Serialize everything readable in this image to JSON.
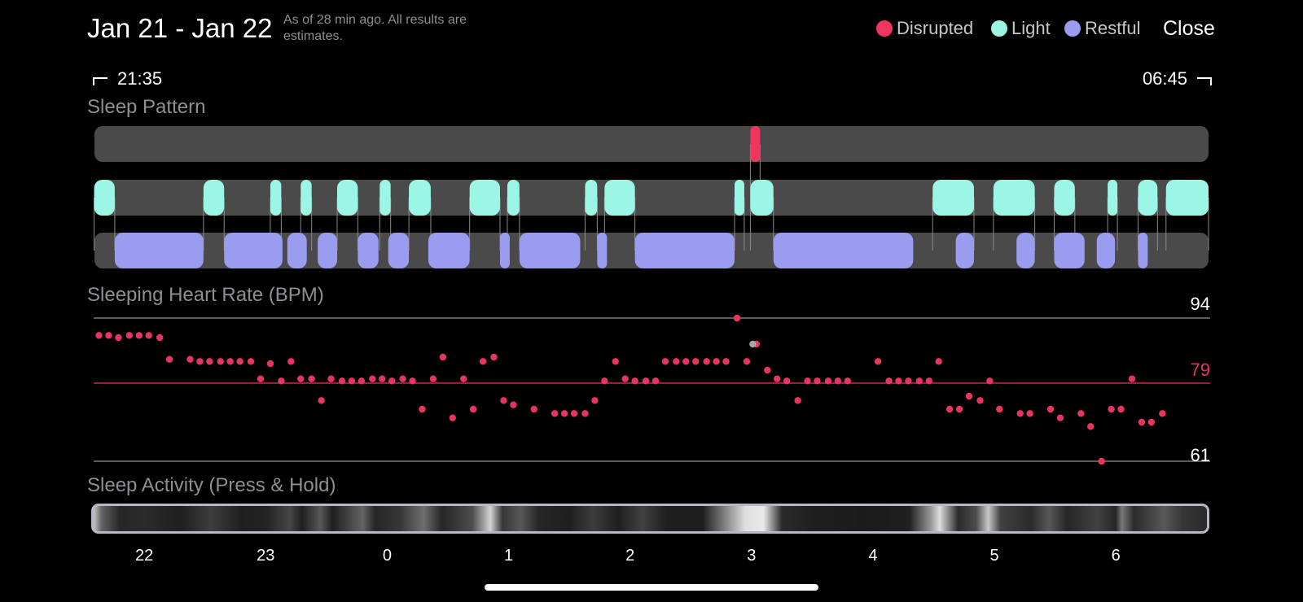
{
  "header": {
    "date_range": "Jan 21 - Jan 22",
    "estimate_note": "As of 28 min ago. All results are estimates.",
    "close_label": "Close"
  },
  "legend": [
    {
      "label": "Disrupted",
      "color": "#f0365e"
    },
    {
      "label": "Light",
      "color": "#9bf6e6"
    },
    {
      "label": "Restful",
      "color": "#9a9cf0"
    }
  ],
  "time_range": {
    "start": "21:35",
    "end": "06:45"
  },
  "sections": {
    "sleep_pattern": "Sleep Pattern",
    "heart_rate": "Sleeping Heart Rate (BPM)",
    "activity": "Sleep Activity (Press & Hold)"
  },
  "colors": {
    "disrupted": "#f0365e",
    "light": "#9bf6e6",
    "restful": "#9a9cf0",
    "lane": "#4a4a4a",
    "hr_dot": "#e8355f",
    "hr_dot_alt": "#a8a8a8"
  },
  "chart_data": [
    {
      "type": "timeline",
      "x_unit": "hours since midnight Jan 21",
      "xlim": [
        21.583,
        30.75
      ],
      "lanes": [
        "Disrupted",
        "Light",
        "Restful"
      ],
      "segments": {
        "Disrupted": [
          [
            26.98,
            27.06
          ]
        ],
        "Light": [
          [
            21.58,
            21.75
          ],
          [
            22.48,
            22.65
          ],
          [
            23.03,
            23.12
          ],
          [
            23.28,
            23.37
          ],
          [
            23.58,
            23.75
          ],
          [
            23.93,
            24.02
          ],
          [
            24.17,
            24.35
          ],
          [
            24.67,
            24.92
          ],
          [
            24.98,
            25.08
          ],
          [
            25.62,
            25.72
          ],
          [
            25.78,
            26.03
          ],
          [
            26.85,
            26.93
          ],
          [
            26.98,
            27.17
          ],
          [
            28.48,
            28.82
          ],
          [
            28.98,
            29.32
          ],
          [
            29.48,
            29.65
          ],
          [
            29.92,
            30.0
          ],
          [
            30.17,
            30.33
          ],
          [
            30.4,
            30.75
          ]
        ],
        "Restful": [
          [
            21.75,
            22.48
          ],
          [
            22.65,
            23.13
          ],
          [
            23.17,
            23.33
          ],
          [
            23.42,
            23.58
          ],
          [
            23.75,
            23.92
          ],
          [
            24.0,
            24.17
          ],
          [
            24.33,
            24.67
          ],
          [
            24.92,
            25.0
          ],
          [
            25.08,
            25.58
          ],
          [
            25.72,
            25.8
          ],
          [
            26.03,
            26.85
          ],
          [
            27.17,
            28.32
          ],
          [
            28.67,
            28.82
          ],
          [
            29.17,
            29.32
          ],
          [
            29.48,
            29.73
          ],
          [
            29.83,
            29.98
          ],
          [
            30.17,
            30.25
          ]
        ]
      }
    },
    {
      "type": "scatter",
      "title": "Sleeping Heart Rate (BPM)",
      "x_unit": "hours since midnight Jan 21",
      "xlim": [
        21.583,
        30.75
      ],
      "ylim": [
        61,
        94
      ],
      "reference_lines": [
        {
          "value": 94,
          "label": "94"
        },
        {
          "value": 79,
          "label": "79"
        },
        {
          "value": 61,
          "label": "61"
        }
      ],
      "points": [
        [
          21.62,
          90
        ],
        [
          21.7,
          90
        ],
        [
          21.78,
          89.5
        ],
        [
          21.87,
          90
        ],
        [
          21.95,
          90
        ],
        [
          22.03,
          90
        ],
        [
          22.12,
          89.5
        ],
        [
          22.2,
          84.5
        ],
        [
          22.37,
          84.5
        ],
        [
          22.45,
          84
        ],
        [
          22.53,
          84
        ],
        [
          22.62,
          84
        ],
        [
          22.7,
          84
        ],
        [
          22.78,
          84
        ],
        [
          22.87,
          84
        ],
        [
          22.95,
          80
        ],
        [
          23.03,
          83.5
        ],
        [
          23.12,
          79.5
        ],
        [
          23.2,
          84
        ],
        [
          23.28,
          80
        ],
        [
          23.37,
          80
        ],
        [
          23.45,
          75
        ],
        [
          23.53,
          80
        ],
        [
          23.62,
          79.5
        ],
        [
          23.7,
          79.5
        ],
        [
          23.78,
          79.5
        ],
        [
          23.87,
          80
        ],
        [
          23.95,
          80
        ],
        [
          24.03,
          79.5
        ],
        [
          24.12,
          80
        ],
        [
          24.2,
          79.5
        ],
        [
          24.28,
          73
        ],
        [
          24.37,
          80
        ],
        [
          24.45,
          85
        ],
        [
          24.53,
          71
        ],
        [
          24.62,
          80
        ],
        [
          24.7,
          73
        ],
        [
          24.78,
          84
        ],
        [
          24.87,
          85
        ],
        [
          24.95,
          75
        ],
        [
          25.03,
          74
        ],
        [
          25.2,
          73
        ],
        [
          25.37,
          72
        ],
        [
          25.45,
          72
        ],
        [
          25.53,
          72
        ],
        [
          25.62,
          72
        ],
        [
          25.7,
          75
        ],
        [
          25.78,
          79.5
        ],
        [
          25.87,
          84
        ],
        [
          25.95,
          80
        ],
        [
          26.03,
          79.5
        ],
        [
          26.12,
          79.5
        ],
        [
          26.2,
          79.5
        ],
        [
          26.28,
          84
        ],
        [
          26.37,
          84
        ],
        [
          26.45,
          84
        ],
        [
          26.53,
          84
        ],
        [
          26.62,
          84
        ],
        [
          26.7,
          84
        ],
        [
          26.78,
          84
        ],
        [
          26.87,
          94
        ],
        [
          26.95,
          84
        ],
        [
          27.03,
          88
        ],
        [
          27.12,
          82
        ],
        [
          27.2,
          80
        ],
        [
          27.28,
          79.5
        ],
        [
          27.37,
          75
        ],
        [
          27.45,
          79.5
        ],
        [
          27.53,
          79.5
        ],
        [
          27.62,
          79.5
        ],
        [
          27.7,
          79.5
        ],
        [
          27.78,
          79.5
        ],
        [
          28.03,
          84
        ],
        [
          28.12,
          79.5
        ],
        [
          28.2,
          79.5
        ],
        [
          28.28,
          79.5
        ],
        [
          28.37,
          79.5
        ],
        [
          28.45,
          79.5
        ],
        [
          28.53,
          84
        ],
        [
          28.62,
          73
        ],
        [
          28.7,
          73
        ],
        [
          28.78,
          76
        ],
        [
          28.87,
          75
        ],
        [
          28.95,
          79.5
        ],
        [
          29.03,
          73
        ],
        [
          29.2,
          72
        ],
        [
          29.28,
          72
        ],
        [
          29.45,
          73
        ],
        [
          29.53,
          71
        ],
        [
          29.7,
          72
        ],
        [
          29.78,
          69
        ],
        [
          29.87,
          61
        ],
        [
          29.95,
          73
        ],
        [
          30.03,
          73
        ],
        [
          30.12,
          80
        ],
        [
          30.2,
          70
        ],
        [
          30.28,
          70
        ],
        [
          30.37,
          72
        ]
      ],
      "highlight_point": [
        27.0,
        88
      ]
    },
    {
      "type": "heatmap",
      "title": "Sleep Activity (Press & Hold)",
      "x_unit": "hours since midnight Jan 21",
      "xlim": [
        21.583,
        30.75
      ],
      "x_ticks": [
        {
          "value": 22,
          "label": "22"
        },
        {
          "value": 23,
          "label": "23"
        },
        {
          "value": 24,
          "label": "0"
        },
        {
          "value": 25,
          "label": "1"
        },
        {
          "value": 26,
          "label": "2"
        },
        {
          "value": 27,
          "label": "3"
        },
        {
          "value": 28,
          "label": "4"
        },
        {
          "value": 29,
          "label": "5"
        },
        {
          "value": 30,
          "label": "6"
        }
      ],
      "intensity": [
        [
          21.58,
          0.8
        ],
        [
          21.65,
          0.35
        ],
        [
          21.8,
          0.08
        ],
        [
          22.0,
          0.1
        ],
        [
          22.3,
          0.05
        ],
        [
          22.55,
          0.18
        ],
        [
          22.8,
          0.05
        ],
        [
          23.0,
          0.06
        ],
        [
          23.2,
          0.22
        ],
        [
          23.3,
          0.05
        ],
        [
          23.45,
          0.3
        ],
        [
          23.55,
          0.05
        ],
        [
          23.8,
          0.35
        ],
        [
          23.9,
          0.08
        ],
        [
          24.1,
          0.15
        ],
        [
          24.3,
          0.4
        ],
        [
          24.45,
          0.08
        ],
        [
          24.7,
          0.25
        ],
        [
          24.85,
          0.85
        ],
        [
          24.95,
          0.15
        ],
        [
          25.1,
          0.3
        ],
        [
          25.25,
          0.08
        ],
        [
          25.5,
          0.05
        ],
        [
          25.7,
          0.18
        ],
        [
          25.9,
          0.05
        ],
        [
          26.1,
          0.2
        ],
        [
          26.3,
          0.05
        ],
        [
          26.6,
          0.05
        ],
        [
          26.95,
          0.9
        ],
        [
          27.1,
          0.95
        ],
        [
          27.25,
          0.1
        ],
        [
          27.5,
          0.05
        ],
        [
          27.9,
          0.03
        ],
        [
          28.3,
          0.05
        ],
        [
          28.48,
          0.6
        ],
        [
          28.55,
          0.9
        ],
        [
          28.7,
          0.1
        ],
        [
          28.85,
          0.25
        ],
        [
          28.95,
          0.8
        ],
        [
          29.05,
          0.2
        ],
        [
          29.3,
          0.1
        ],
        [
          29.45,
          0.3
        ],
        [
          29.6,
          0.08
        ],
        [
          29.85,
          0.2
        ],
        [
          30.0,
          0.08
        ],
        [
          30.05,
          0.45
        ],
        [
          30.15,
          0.1
        ],
        [
          30.4,
          0.3
        ],
        [
          30.55,
          0.15
        ],
        [
          30.75,
          0.1
        ]
      ]
    }
  ]
}
